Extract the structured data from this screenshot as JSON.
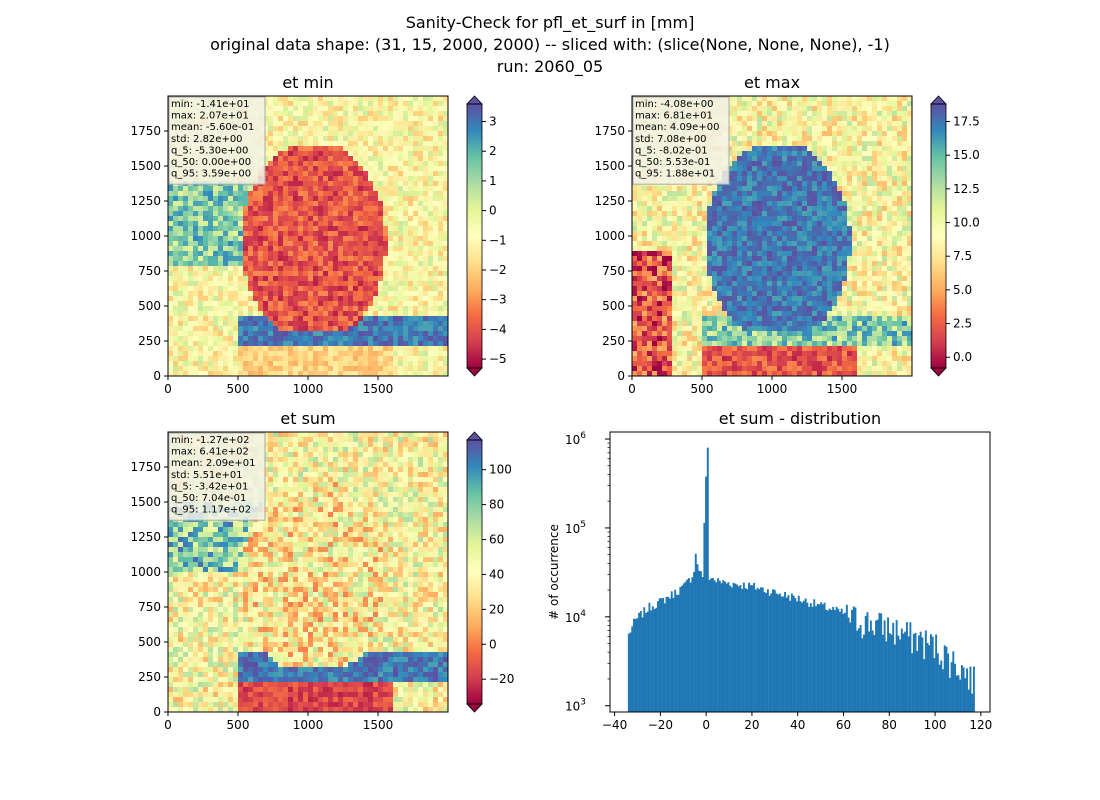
{
  "figure": {
    "title_line1": "Sanity-Check for pfl_et_surf in [mm]",
    "title_line2": "original data shape: (31, 15, 2000, 2000) -- sliced with: (slice(None, None, None), -1)",
    "title_line3": "run: 2060_05"
  },
  "chart_data": [
    {
      "type": "heatmap",
      "title": "et min",
      "xlim": [
        0,
        2000
      ],
      "ylim": [
        0,
        2000
      ],
      "xticks": [
        "0",
        "500",
        "1000",
        "1500"
      ],
      "yticks": [
        "0",
        "250",
        "500",
        "750",
        "1000",
        "1250",
        "1500",
        "1750"
      ],
      "colormap": "Spectral",
      "colorbar": {
        "min": -5.3,
        "max": 3.59,
        "ticks": [
          "3",
          "2",
          "1",
          "0",
          "−1",
          "−2",
          "−3",
          "−4",
          "−5"
        ],
        "extend": "both"
      },
      "stats": [
        "min: -1.41e+01",
        "max: 2.07e+01",
        "mean: -5.60e-01",
        "std: 2.82e+00",
        "q_5: -5.30e+00",
        "q_50: 0.00e+00",
        "q_95: 3.59e+00"
      ]
    },
    {
      "type": "heatmap",
      "title": "et max",
      "xlim": [
        0,
        2000
      ],
      "ylim": [
        0,
        2000
      ],
      "xticks": [
        "0",
        "500",
        "1000",
        "1500"
      ],
      "yticks": [
        "0",
        "250",
        "500",
        "750",
        "1000",
        "1250",
        "1500",
        "1750"
      ],
      "colormap": "Spectral",
      "colorbar": {
        "min": -0.8,
        "max": 18.8,
        "ticks": [
          "17.5",
          "15.0",
          "12.5",
          "10.0",
          "7.5",
          "5.0",
          "2.5",
          "0.0"
        ],
        "extend": "both"
      },
      "stats": [
        "min: -4.08e+00",
        "max: 6.81e+01",
        "mean: 4.09e+00",
        "std: 7.08e+00",
        "q_5: -8.02e-01",
        "q_50: 5.53e-01",
        "q_95: 1.88e+01"
      ]
    },
    {
      "type": "heatmap",
      "title": "et sum",
      "xlim": [
        0,
        2000
      ],
      "ylim": [
        0,
        2000
      ],
      "xticks": [
        "0",
        "500",
        "1000",
        "1500"
      ],
      "yticks": [
        "0",
        "250",
        "500",
        "750",
        "1000",
        "1250",
        "1500",
        "1750"
      ],
      "colormap": "Spectral",
      "colorbar": {
        "min": -34.2,
        "max": 117,
        "ticks": [
          "100",
          "80",
          "60",
          "40",
          "20",
          "0",
          "−20"
        ],
        "extend": "both"
      },
      "stats": [
        "min: -1.27e+02",
        "max: 6.41e+02",
        "mean: 2.09e+01",
        "std: 5.51e+01",
        "q_5: -3.42e+01",
        "q_50: 7.04e-01",
        "q_95: 1.17e+02"
      ]
    },
    {
      "type": "bar",
      "title": "et sum - distribution",
      "ylabel": "# of occurrence",
      "yscale": "log",
      "xlim": [
        -42,
        124
      ],
      "ylim": [
        850,
        1200000
      ],
      "xticks": [
        "−40",
        "−20",
        "0",
        "20",
        "40",
        "60",
        "80",
        "100",
        "120"
      ],
      "yticks": [
        "10^3",
        "10^4",
        "10^5",
        "10^6"
      ],
      "bar_color": "#1f77b4",
      "key_points": [
        {
          "x": -34,
          "y": 6500
        },
        {
          "x": -32,
          "y": 8500
        },
        {
          "x": -30,
          "y": 10000
        },
        {
          "x": -25,
          "y": 13000
        },
        {
          "x": -20,
          "y": 15000
        },
        {
          "x": -15,
          "y": 18000
        },
        {
          "x": -10,
          "y": 22000
        },
        {
          "x": -6,
          "y": 30000
        },
        {
          "x": -5,
          "y": 50000
        },
        {
          "x": -4,
          "y": 38000
        },
        {
          "x": -2,
          "y": 27000
        },
        {
          "x": 0,
          "y": 800000
        },
        {
          "x": 1,
          "y": 28000
        },
        {
          "x": 5,
          "y": 25000
        },
        {
          "x": 20,
          "y": 22000
        },
        {
          "x": 40,
          "y": 16000
        },
        {
          "x": 60,
          "y": 11000
        },
        {
          "x": 80,
          "y": 8000
        },
        {
          "x": 100,
          "y": 5000
        },
        {
          "x": 110,
          "y": 3000
        },
        {
          "x": 117,
          "y": 2000
        }
      ]
    }
  ]
}
